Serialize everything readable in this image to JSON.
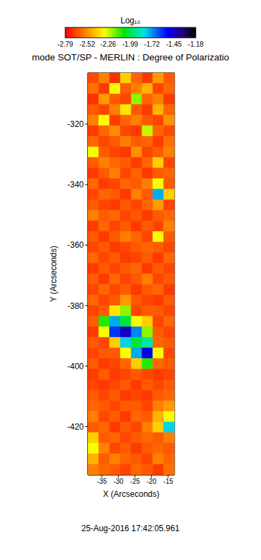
{
  "chart_data": {
    "type": "heatmap",
    "title": "mode SOT/SP - MERLIN : Degree of Polarizatio",
    "x_label": "X (Arcseconds)",
    "y_label": "Y (Arcseconds)",
    "annotation": "25-Aug-2016 17:42:05.961",
    "xlim": [
      -39.2,
      -13.1
    ],
    "ylim": [
      -436,
      -303
    ],
    "xticks": [
      -35,
      -30,
      -25,
      -20,
      -15
    ],
    "yticks": [
      -420,
      -400,
      -380,
      -360,
      -340,
      -320
    ],
    "colorbar": {
      "label": "Log₁₀",
      "range": [
        -2.79,
        -1.18
      ],
      "ticks": [
        -2.79,
        -2.52,
        -2.26,
        -1.99,
        -1.72,
        -1.45,
        -1.18
      ]
    },
    "x": [
      -37.57,
      -34.31,
      -31.04,
      -27.78,
      -24.52,
      -21.26,
      -17.99,
      -14.73
    ],
    "y": [
      -304.75,
      -308.25,
      -311.75,
      -315.25,
      -318.75,
      -322.25,
      -325.75,
      -329.25,
      -332.75,
      -336.25,
      -339.75,
      -343.25,
      -346.75,
      -350.25,
      -353.75,
      -357.25,
      -360.75,
      -364.25,
      -367.75,
      -371.25,
      -374.75,
      -378.25,
      -381.75,
      -385.25,
      -388.75,
      -392.25,
      -395.75,
      -399.25,
      -402.75,
      -406.25,
      -409.75,
      -413.25,
      -416.75,
      -420.25,
      -423.75,
      -427.25,
      -430.75,
      -434.25
    ],
    "cells": [
      [
        -2.65,
        -2.55,
        -2.7,
        -2.4,
        -2.6,
        -2.68,
        -2.5,
        -2.62
      ],
      [
        -2.58,
        -2.68,
        -2.3,
        -2.62,
        -2.55,
        -2.45,
        -2.66,
        -2.6
      ],
      [
        -2.7,
        -2.5,
        -2.62,
        -2.66,
        -2.2,
        -2.6,
        -2.55,
        -2.68
      ],
      [
        -2.62,
        -2.66,
        -2.55,
        -2.35,
        -2.62,
        -2.68,
        -2.45,
        -2.6
      ],
      [
        -2.55,
        -2.3,
        -2.68,
        -2.6,
        -2.55,
        -2.62,
        -2.66,
        -2.52
      ],
      [
        -2.68,
        -2.6,
        -2.52,
        -2.66,
        -2.68,
        -2.25,
        -2.6,
        -2.65
      ],
      [
        -2.6,
        -2.66,
        -2.62,
        -2.55,
        -2.62,
        -2.6,
        -2.68,
        -2.58
      ],
      [
        -2.3,
        -2.62,
        -2.66,
        -2.68,
        -2.52,
        -2.66,
        -2.62,
        -2.55
      ],
      [
        -2.62,
        -2.55,
        -2.6,
        -2.62,
        -2.68,
        -2.6,
        -2.4,
        -2.66
      ],
      [
        -2.68,
        -2.62,
        -2.55,
        -2.66,
        -2.6,
        -2.68,
        -2.62,
        -2.6
      ],
      [
        -2.6,
        -2.68,
        -2.66,
        -2.6,
        -2.62,
        -2.55,
        -2.3,
        -2.62
      ],
      [
        -2.66,
        -2.6,
        -2.62,
        -2.68,
        -2.55,
        -2.62,
        -1.75,
        -2.4
      ],
      [
        -2.62,
        -2.66,
        -2.68,
        -2.62,
        -2.66,
        -2.6,
        -2.5,
        -2.66
      ],
      [
        -2.55,
        -2.62,
        -2.6,
        -2.66,
        -2.62,
        -2.68,
        -2.62,
        -2.6
      ],
      [
        -2.68,
        -2.6,
        -2.66,
        -2.62,
        -2.68,
        -2.62,
        -2.66,
        -2.55
      ],
      [
        -2.62,
        -2.68,
        -2.62,
        -2.55,
        -2.6,
        -2.66,
        -2.3,
        -2.62
      ],
      [
        -2.66,
        -2.62,
        -2.68,
        -2.66,
        -2.62,
        -2.6,
        -2.62,
        -2.66
      ],
      [
        -2.6,
        -2.66,
        -2.62,
        -2.68,
        -2.66,
        -2.62,
        -2.68,
        -2.6
      ],
      [
        -2.68,
        -2.62,
        -2.66,
        -2.62,
        -2.6,
        -2.68,
        -2.62,
        -2.66
      ],
      [
        -2.62,
        -2.68,
        -2.6,
        -2.66,
        -2.62,
        -2.55,
        -2.66,
        -2.62
      ],
      [
        -2.66,
        -2.6,
        -2.66,
        -2.62,
        -2.68,
        -2.62,
        -2.6,
        -2.68
      ],
      [
        -2.6,
        -2.66,
        -2.62,
        -2.5,
        -2.62,
        -2.66,
        -2.68,
        -2.62
      ],
      [
        -2.66,
        -2.62,
        -2.35,
        -2.2,
        -2.66,
        -2.62,
        -2.62,
        -2.66
      ],
      [
        -2.62,
        -2.1,
        -1.75,
        -2.0,
        -2.3,
        -2.4,
        -2.66,
        -2.6
      ],
      [
        -2.68,
        -2.3,
        -1.6,
        -1.45,
        -1.7,
        -2.2,
        -2.62,
        -2.66
      ],
      [
        -2.62,
        -2.66,
        -2.4,
        -1.8,
        -2.0,
        -1.9,
        -2.6,
        -2.62
      ],
      [
        -2.66,
        -2.62,
        -2.62,
        -2.3,
        -1.75,
        -1.5,
        -2.3,
        -2.66
      ],
      [
        -2.62,
        -2.68,
        -2.66,
        -2.6,
        -2.4,
        -2.1,
        -2.6,
        -2.62
      ],
      [
        -2.68,
        -2.62,
        -2.68,
        -2.66,
        -2.62,
        -2.66,
        -2.68,
        -2.66
      ],
      [
        -2.66,
        -2.68,
        -2.66,
        -2.62,
        -2.68,
        -2.62,
        -2.66,
        -2.62
      ],
      [
        -2.62,
        -2.66,
        -2.62,
        -2.68,
        -2.66,
        -2.68,
        -2.62,
        -2.6
      ],
      [
        -2.6,
        -2.62,
        -2.66,
        -2.62,
        -2.62,
        -2.66,
        -2.55,
        -2.5
      ],
      [
        -2.55,
        -2.66,
        -2.62,
        -2.68,
        -2.6,
        -2.62,
        -2.45,
        -2.3
      ],
      [
        -2.62,
        -2.6,
        -2.68,
        -2.62,
        -2.66,
        -2.55,
        -2.4,
        -1.8
      ],
      [
        -2.4,
        -2.62,
        -2.6,
        -2.66,
        -2.62,
        -2.6,
        -2.62,
        -2.55
      ],
      [
        -2.3,
        -2.55,
        -2.66,
        -2.62,
        -2.68,
        -2.62,
        -2.6,
        -2.62
      ],
      [
        -2.45,
        -2.62,
        -2.55,
        -2.6,
        -2.62,
        -2.66,
        -2.55,
        -2.6
      ],
      [
        -2.55,
        -2.6,
        -2.62,
        -2.66,
        -2.6,
        -2.62,
        -2.68,
        -2.58
      ]
    ]
  }
}
